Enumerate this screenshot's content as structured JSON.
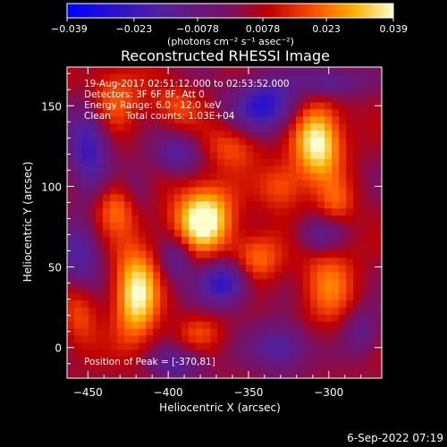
{
  "chart_data": {
    "type": "heatmap",
    "title": "Reconstructed RHESSI Image",
    "xlabel": "Heliocentric X (arcsec)",
    "ylabel": "Heliocentric Y (arcsec)",
    "xlim": [
      -463,
      -267
    ],
    "ylim": [
      -19,
      174
    ],
    "x_ticks": [
      -450,
      -400,
      -350,
      -300
    ],
    "x_tick_labels": [
      "−450",
      "−400",
      "−350",
      "−300"
    ],
    "y_ticks": [
      0,
      50,
      100,
      150
    ],
    "y_tick_labels": [
      "0",
      "50",
      "100",
      "150"
    ],
    "colorbar": {
      "min": -0.039,
      "max": 0.039,
      "ticks": [
        -0.039,
        -0.023,
        -0.0078,
        0.0078,
        0.023,
        0.039
      ],
      "tick_labels": [
        "−0.039",
        "−0.023",
        "−0.0078",
        "0.0078",
        "0.023",
        "0.039"
      ],
      "label": "(photons cm⁻² s⁻¹ asec⁻²)"
    },
    "annotations": [
      "19-Aug-2017 02:51:12.000 to 02:53:52.000",
      "Detectors: 3F 6F 8F, Att 0",
      "Energy Range: 6.0 - 12.0 keV",
      "Clean     Total counts: 1.03E+04",
      "Position of Peak = [-370,81]"
    ],
    "sources": [
      {
        "x": -378,
        "y": 80,
        "amp": 0.039,
        "sx": 13,
        "sy": 15
      },
      {
        "x": -307,
        "y": 128,
        "amp": 0.037,
        "sx": 11,
        "sy": 17
      },
      {
        "x": -420,
        "y": 33,
        "amp": 0.034,
        "sx": 10,
        "sy": 22
      },
      {
        "x": -430,
        "y": 88,
        "amp": 0.022,
        "sx": 11,
        "sy": 12
      },
      {
        "x": -435,
        "y": 155,
        "amp": 0.018,
        "sx": 13,
        "sy": 15
      },
      {
        "x": -345,
        "y": 55,
        "amp": 0.02,
        "sx": 11,
        "sy": 11
      },
      {
        "x": -330,
        "y": 100,
        "amp": 0.017,
        "sx": 10,
        "sy": 11
      },
      {
        "x": -360,
        "y": 125,
        "amp": 0.016,
        "sx": 12,
        "sy": 10
      },
      {
        "x": -300,
        "y": 40,
        "amp": 0.018,
        "sx": 12,
        "sy": 20
      },
      {
        "x": -395,
        "y": 150,
        "amp": 0.014,
        "sx": 11,
        "sy": 9
      },
      {
        "x": -455,
        "y": 20,
        "amp": 0.015,
        "sx": 8,
        "sy": 16
      },
      {
        "x": -295,
        "y": 90,
        "amp": 0.014,
        "sx": 8,
        "sy": 10
      },
      {
        "x": -380,
        "y": 10,
        "amp": 0.012,
        "sx": 10,
        "sy": 8
      }
    ],
    "negative_regions": [
      {
        "x": -450,
        "y": 125,
        "amp": -0.028,
        "sx": 9,
        "sy": 20
      },
      {
        "x": -420,
        "y": 95,
        "amp": -0.016,
        "sx": 8,
        "sy": 12
      },
      {
        "x": -340,
        "y": 150,
        "amp": -0.032,
        "sx": 14,
        "sy": 12
      },
      {
        "x": -300,
        "y": 165,
        "amp": -0.022,
        "sx": 14,
        "sy": 7
      },
      {
        "x": -365,
        "y": 40,
        "amp": -0.032,
        "sx": 11,
        "sy": 10
      },
      {
        "x": -305,
        "y": 70,
        "amp": -0.018,
        "sx": 10,
        "sy": 8
      },
      {
        "x": -330,
        "y": 0,
        "amp": -0.024,
        "sx": 12,
        "sy": 10
      },
      {
        "x": -395,
        "y": -10,
        "amp": -0.02,
        "sx": 12,
        "sy": 7
      },
      {
        "x": -455,
        "y": 55,
        "amp": -0.022,
        "sx": 9,
        "sy": 15
      },
      {
        "x": -395,
        "y": 55,
        "amp": -0.018,
        "sx": 7,
        "sy": 10
      },
      {
        "x": -395,
        "y": 120,
        "amp": -0.02,
        "sx": 10,
        "sy": 8
      },
      {
        "x": -280,
        "y": 10,
        "amp": -0.016,
        "sx": 8,
        "sy": 10
      }
    ],
    "grid": false
  },
  "footer_date": "6-Sep-2022 07:19"
}
